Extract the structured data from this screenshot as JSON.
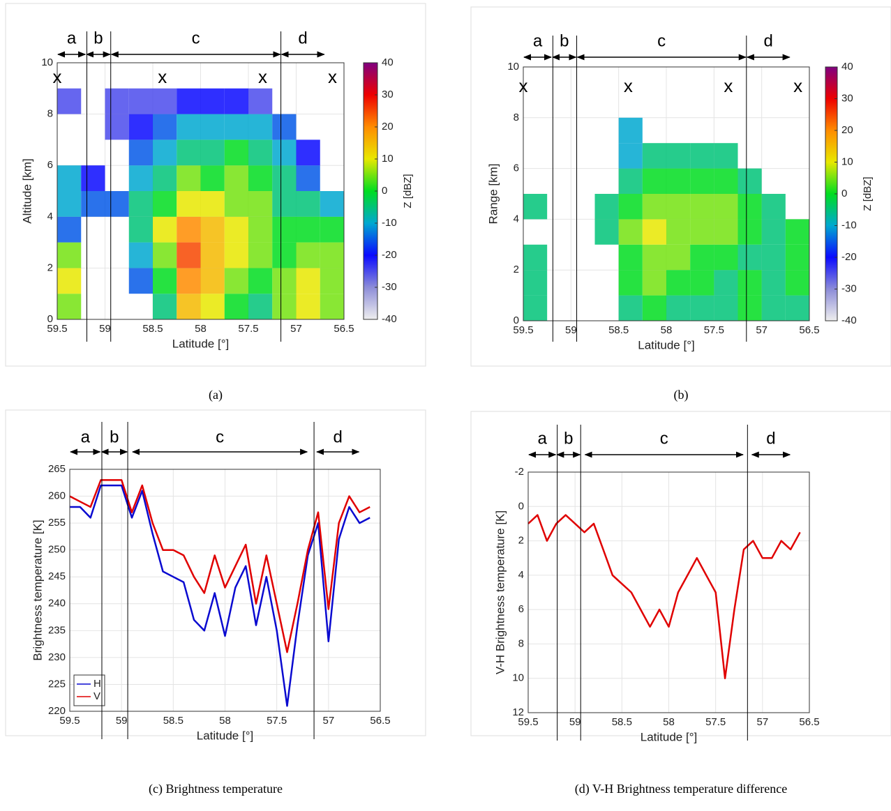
{
  "chart_data": [
    {
      "type": "heatmap",
      "caption": "(a)",
      "x_label": "Latitude [°]",
      "y_label": "Altitude [km]",
      "xlim": [
        59.5,
        56.5
      ],
      "xticks": [
        59.5,
        59,
        58.5,
        58,
        57.5,
        57,
        56.5
      ],
      "ylim": [
        0,
        10
      ],
      "yticks": [
        0,
        2,
        4,
        6,
        8,
        10
      ],
      "grid": true,
      "x": [
        59.375,
        59.125,
        58.875,
        58.625,
        58.375,
        58.125,
        57.875,
        57.625,
        57.375,
        57.125,
        56.875,
        56.625
      ],
      "y": [
        0.5,
        1.5,
        2.5,
        3.5,
        4.5,
        5.5,
        6.5,
        7.5,
        8.5,
        9.5
      ],
      "z": [
        [
          5,
          null,
          null,
          null,
          -5,
          15,
          10,
          0,
          -5,
          5,
          10,
          5
        ],
        [
          10,
          null,
          null,
          -15,
          0,
          20,
          15,
          5,
          0,
          5,
          10,
          5
        ],
        [
          5,
          null,
          null,
          -10,
          5,
          25,
          15,
          10,
          5,
          0,
          5,
          5
        ],
        [
          -15,
          null,
          null,
          -5,
          10,
          20,
          15,
          10,
          5,
          0,
          0,
          0
        ],
        [
          -10,
          -15,
          -15,
          -5,
          0,
          10,
          10,
          5,
          5,
          -5,
          -5,
          -10
        ],
        [
          -10,
          -20,
          null,
          -10,
          -5,
          5,
          0,
          5,
          0,
          -5,
          -15,
          null
        ],
        [
          null,
          null,
          null,
          -15,
          -10,
          -5,
          -5,
          0,
          -5,
          -10,
          -20,
          null
        ],
        [
          null,
          null,
          -25,
          -20,
          -15,
          -10,
          -10,
          -10,
          -10,
          -15,
          null,
          null
        ],
        [
          -25,
          null,
          -25,
          -25,
          -25,
          -20,
          -20,
          -20,
          -25,
          null,
          null,
          null
        ],
        [
          null,
          null,
          null,
          null,
          null,
          null,
          null,
          null,
          null,
          null,
          null,
          null
        ]
      ],
      "colorbar": {
        "label": "Z [dBZ]",
        "lim": [
          -40,
          40
        ],
        "ticks": [
          -40,
          -30,
          -20,
          -10,
          0,
          10,
          20,
          30,
          40
        ]
      },
      "colormap": [
        "#eeeeee",
        "#8c8cd8",
        "#0a0aff",
        "#00a8d0",
        "#00dd20",
        "#e8e800",
        "#ff8c00",
        "#ee0000",
        "#800080"
      ],
      "regions": [
        {
          "label": "a",
          "from": 59.5,
          "to": 59.2
        },
        {
          "label": "b",
          "from": 59.2,
          "to": 58.94
        },
        {
          "label": "c",
          "from": 58.94,
          "to": 57.16
        },
        {
          "label": "d",
          "from": 57.16,
          "to": 56.7
        }
      ],
      "boundaries": [
        59.19,
        58.94,
        57.16
      ],
      "markers": [
        {
          "label": "x",
          "x": 59.5,
          "y": 9.4
        },
        {
          "label": "x",
          "x": 58.4,
          "y": 9.4
        },
        {
          "label": "x",
          "x": 57.35,
          "y": 9.4
        },
        {
          "label": "x",
          "x": 56.62,
          "y": 9.4
        }
      ]
    },
    {
      "type": "heatmap",
      "caption": "(b)",
      "x_label": "Latitude [°]",
      "y_label": "Range [km]",
      "xlim": [
        59.5,
        56.5
      ],
      "xticks": [
        59.5,
        59,
        58.5,
        58,
        57.5,
        57,
        56.5
      ],
      "ylim": [
        0,
        10
      ],
      "yticks": [
        0,
        2,
        4,
        6,
        8,
        10
      ],
      "grid": true,
      "x": [
        59.375,
        59.125,
        58.875,
        58.625,
        58.375,
        58.125,
        57.875,
        57.625,
        57.375,
        57.125,
        56.875,
        56.625
      ],
      "y": [
        0.5,
        1.5,
        2.5,
        3.5,
        4.5,
        5.5,
        6.5,
        7.5,
        8.5,
        9.5
      ],
      "z": [
        [
          -5,
          null,
          null,
          null,
          -5,
          0,
          -5,
          -5,
          -5,
          0,
          -5,
          -5
        ],
        [
          -5,
          null,
          null,
          null,
          0,
          5,
          0,
          0,
          -5,
          0,
          -5,
          0
        ],
        [
          -5,
          null,
          null,
          null,
          0,
          5,
          5,
          0,
          0,
          -5,
          -5,
          0
        ],
        [
          null,
          null,
          null,
          -5,
          5,
          10,
          5,
          5,
          5,
          0,
          -5,
          0
        ],
        [
          -5,
          null,
          null,
          -5,
          0,
          5,
          5,
          5,
          5,
          0,
          -5,
          null
        ],
        [
          null,
          null,
          null,
          null,
          -5,
          0,
          0,
          0,
          0,
          -5,
          null,
          null
        ],
        [
          null,
          null,
          null,
          null,
          -10,
          -5,
          -5,
          -5,
          -5,
          null,
          null,
          null
        ],
        [
          null,
          null,
          null,
          null,
          -10,
          null,
          null,
          null,
          null,
          null,
          null,
          null
        ],
        [
          null,
          null,
          null,
          null,
          null,
          null,
          null,
          null,
          null,
          null,
          null,
          null
        ],
        [
          null,
          null,
          null,
          null,
          null,
          null,
          null,
          null,
          null,
          null,
          null,
          null
        ]
      ],
      "colorbar": {
        "label": "Z [dBZ]",
        "lim": [
          -40,
          40
        ],
        "ticks": [
          -40,
          -30,
          -20,
          -10,
          0,
          10,
          20,
          30,
          40
        ]
      },
      "colormap": [
        "#eeeeee",
        "#8c8cd8",
        "#0a0aff",
        "#00a8d0",
        "#00dd20",
        "#e8e800",
        "#ff8c00",
        "#ee0000",
        "#800080"
      ],
      "regions": [
        {
          "label": "a",
          "from": 59.5,
          "to": 59.2
        },
        {
          "label": "b",
          "from": 59.2,
          "to": 58.94
        },
        {
          "label": "c",
          "from": 58.94,
          "to": 57.16
        },
        {
          "label": "d",
          "from": 57.16,
          "to": 56.7
        }
      ],
      "boundaries": [
        59.19,
        58.94,
        57.16
      ],
      "markers": [
        {
          "label": "x",
          "x": 59.5,
          "y": 9.2
        },
        {
          "label": "x",
          "x": 58.4,
          "y": 9.2
        },
        {
          "label": "x",
          "x": 57.35,
          "y": 9.2
        },
        {
          "label": "x",
          "x": 56.62,
          "y": 9.2
        }
      ]
    },
    {
      "type": "line",
      "caption": "(c) Brightness temperature",
      "x_label": "Latitude [°]",
      "y_label": "Brightness temperature [K]",
      "xlim": [
        59.5,
        56.5
      ],
      "xticks": [
        59.5,
        59,
        58.5,
        58,
        57.5,
        57,
        56.5
      ],
      "ylim": [
        220,
        265
      ],
      "yticks": [
        220,
        225,
        230,
        235,
        240,
        245,
        250,
        255,
        260,
        265
      ],
      "grid": true,
      "legend": "lower left",
      "x": [
        59.5,
        59.4,
        59.3,
        59.2,
        59.1,
        59.0,
        58.9,
        58.8,
        58.7,
        58.6,
        58.5,
        58.4,
        58.3,
        58.2,
        58.1,
        58.0,
        57.9,
        57.8,
        57.7,
        57.6,
        57.5,
        57.4,
        57.3,
        57.2,
        57.1,
        57.0,
        56.9,
        56.8,
        56.7,
        56.6
      ],
      "series": [
        {
          "name": "H",
          "color": "#0a0ad0",
          "values": [
            258,
            258,
            256,
            262,
            262,
            262,
            256,
            261,
            253,
            246,
            245,
            244,
            237,
            235,
            242,
            234,
            243,
            247,
            236,
            245,
            235,
            221,
            236,
            249,
            255,
            233,
            252,
            258,
            255,
            256
          ]
        },
        {
          "name": "V",
          "color": "#e00000",
          "values": [
            260,
            259,
            258,
            263,
            263,
            263,
            257,
            262,
            255,
            250,
            250,
            249,
            245,
            242,
            249,
            243,
            247,
            251,
            240,
            249,
            240,
            231,
            240,
            250,
            257,
            239,
            255,
            260,
            257,
            258
          ]
        }
      ],
      "regions": [
        {
          "label": "a",
          "from": 59.5,
          "to": 59.2
        },
        {
          "label": "b",
          "from": 59.2,
          "to": 58.94
        },
        {
          "label": "c",
          "from": 58.9,
          "to": 57.2
        },
        {
          "label": "d",
          "from": 57.12,
          "to": 56.7
        }
      ],
      "boundaries": [
        59.19,
        58.94,
        57.14
      ]
    },
    {
      "type": "line",
      "caption": "(d) V-H Brightness temperature difference",
      "x_label": "Latitude [°]",
      "y_label": "V-H Brightness temperature [K]",
      "xlim": [
        59.5,
        56.5
      ],
      "xticks": [
        59.5,
        59,
        58.5,
        58,
        57.5,
        57,
        56.5
      ],
      "ylim": [
        12,
        -2
      ],
      "yticks": [
        -2,
        0,
        2,
        4,
        6,
        8,
        10,
        12
      ],
      "grid": true,
      "x": [
        59.5,
        59.4,
        59.3,
        59.2,
        59.1,
        59.0,
        58.9,
        58.8,
        58.7,
        58.6,
        58.5,
        58.4,
        58.3,
        58.2,
        58.1,
        58.0,
        57.9,
        57.8,
        57.7,
        57.6,
        57.5,
        57.4,
        57.3,
        57.2,
        57.1,
        57.0,
        56.9,
        56.8,
        56.7,
        56.6
      ],
      "series": [
        {
          "color": "#e00000",
          "values": [
            1,
            0.5,
            2,
            1,
            0.5,
            1,
            1.5,
            1,
            2.5,
            4,
            4.5,
            5,
            6,
            7,
            6,
            7,
            5,
            4,
            3,
            4,
            5,
            10,
            6,
            2.5,
            2,
            3,
            3,
            2,
            2.5,
            1.5
          ]
        }
      ],
      "regions": [
        {
          "label": "a",
          "from": 59.5,
          "to": 59.2
        },
        {
          "label": "b",
          "from": 59.2,
          "to": 58.94
        },
        {
          "label": "c",
          "from": 58.9,
          "to": 57.2
        },
        {
          "label": "d",
          "from": 57.12,
          "to": 56.7
        }
      ],
      "boundaries": [
        59.19,
        58.94,
        57.16
      ]
    }
  ]
}
